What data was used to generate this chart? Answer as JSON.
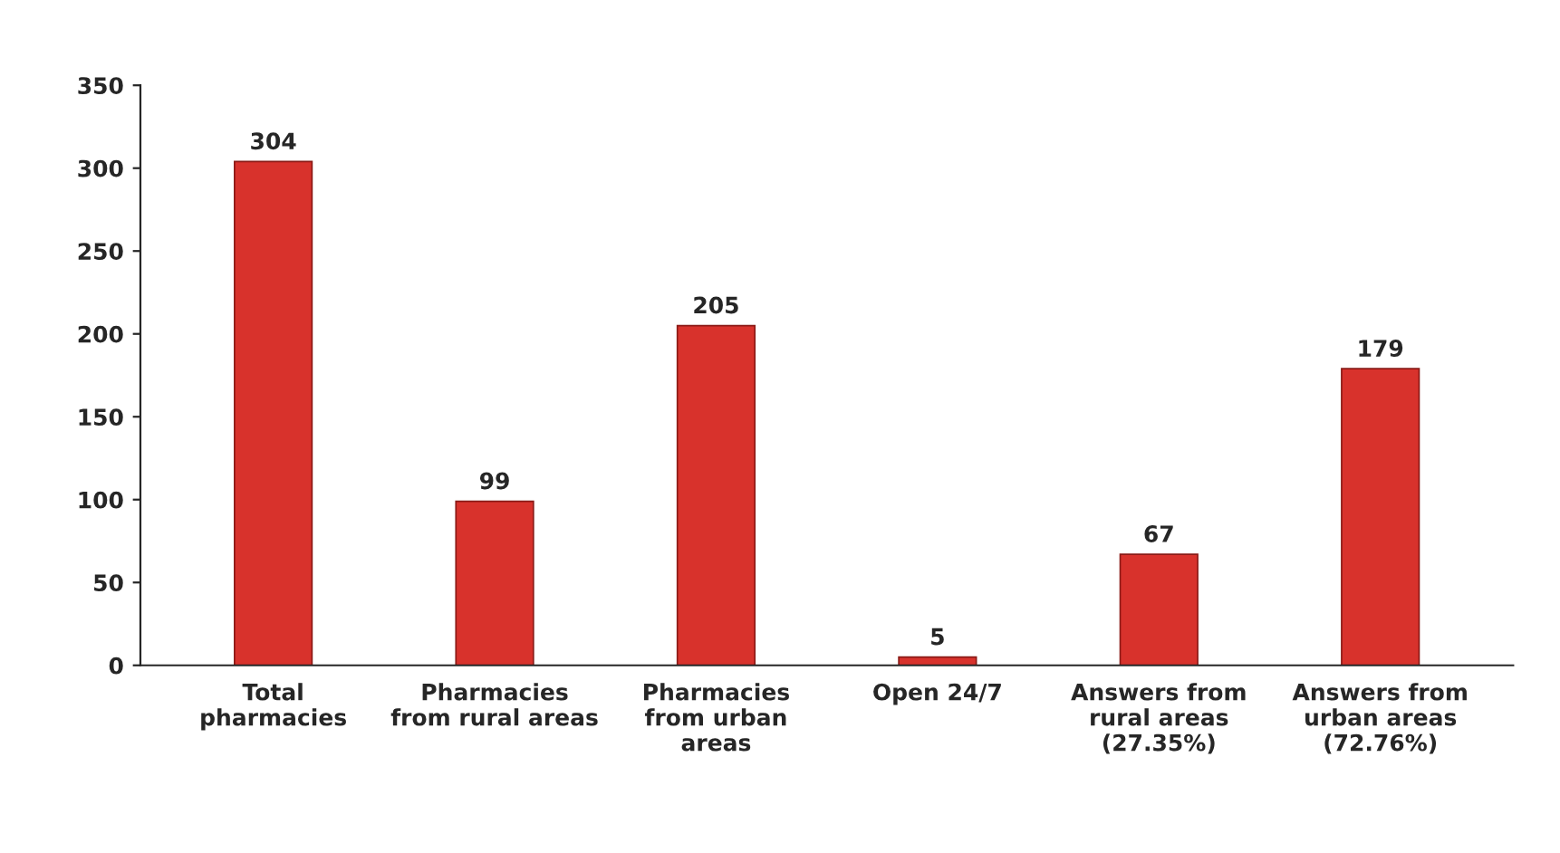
{
  "chart_data": {
    "type": "bar",
    "categories": [
      "Total\npharmacies",
      "Pharmacies\nfrom rural areas",
      "Pharmacies\nfrom urban\nareas",
      "Open 24/7",
      "Answers from\nrural areas\n(27.35%)",
      "Answers from\nurban areas\n(72.76%)"
    ],
    "values": [
      304,
      99,
      205,
      5,
      67,
      179
    ],
    "color": "#d8322c",
    "ylim": [
      0,
      350
    ],
    "yticks": [
      0,
      50,
      100,
      150,
      200,
      250,
      300,
      350
    ],
    "data_labels": true,
    "grid": false
  }
}
